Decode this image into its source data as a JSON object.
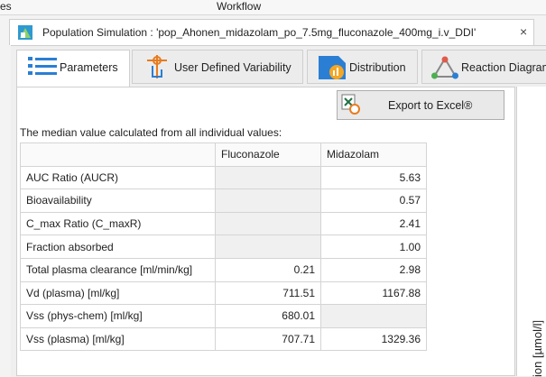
{
  "menu": {
    "left": "es",
    "workflow": "Workflow"
  },
  "document_tab": {
    "title": "Population Simulation : 'pop_Ahonen_midazolam_po_7.5mg_fluconazole_400mg_i.v_DDI'",
    "close": "×"
  },
  "tabs": [
    "Parameters",
    "User Defined Variability",
    "Distribution",
    "Reaction Diagram"
  ],
  "export_button": "Export to Excel®",
  "caption": "The median value calculated from all individual values:",
  "table": {
    "columns": [
      null,
      "Fluconazole",
      "Midazolam"
    ],
    "rows": [
      [
        "AUC Ratio (AUCR)",
        null,
        "5.63"
      ],
      [
        "Bioavailability",
        null,
        "0.57"
      ],
      [
        "C_max Ratio (C_maxR)",
        null,
        "2.41"
      ],
      [
        "Fraction absorbed",
        null,
        "1.00"
      ],
      [
        "Total plasma clearance [ml/min/kg]",
        "0.21",
        "2.98"
      ],
      [
        "Vd (plasma) [ml/kg]",
        "711.51",
        "1167.88"
      ],
      [
        "Vss (phys-chem) [ml/kg]",
        "680.01",
        null
      ],
      [
        "Vss (plasma) [ml/kg]",
        "707.71",
        "1329.36"
      ]
    ]
  },
  "chart_axis_label": "ion [µmol/l]"
}
